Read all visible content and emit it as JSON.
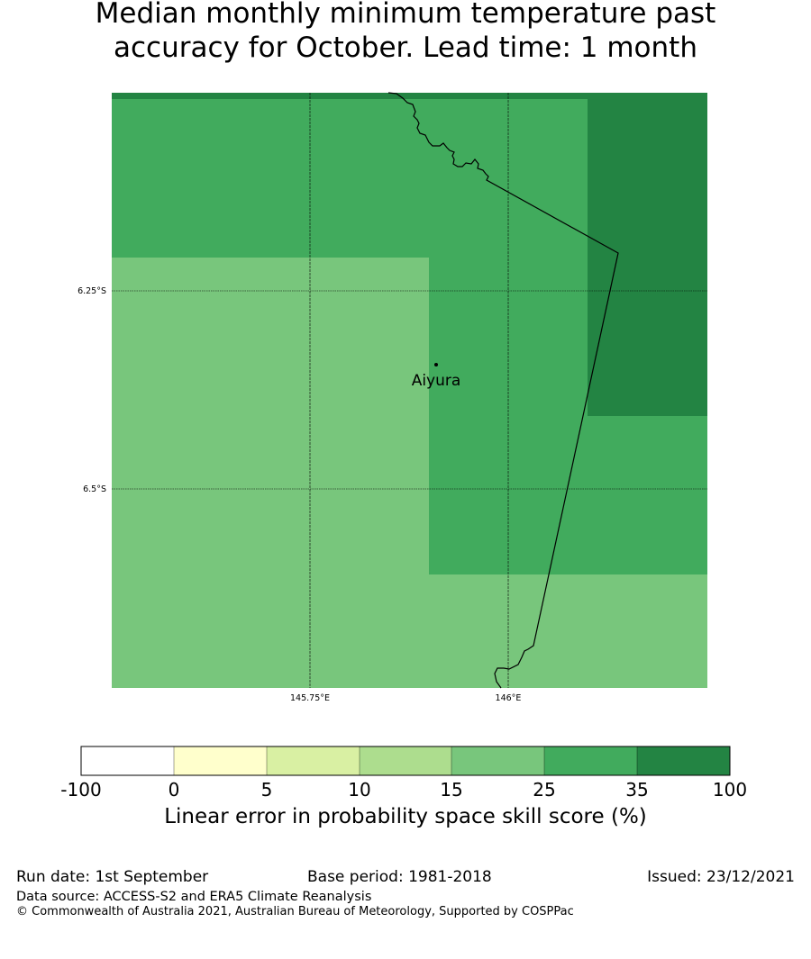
{
  "title_line1": "Median monthly minimum temperature past",
  "title_line2": "accuracy for October. Lead time: 1 month",
  "map": {
    "lat_labels": [
      "6.25°S",
      "6.5°S"
    ],
    "lon_labels": [
      "145.75°E",
      "146°E"
    ],
    "place": "Aiyura",
    "colors": {
      "15_25": "#78c67c",
      "25_35": "#41ab5d",
      "35_100": "#238443"
    }
  },
  "colorbar": {
    "ticks": [
      "-100",
      "0",
      "5",
      "10",
      "15",
      "25",
      "35",
      "100"
    ],
    "colors": [
      "#ffffff",
      "#ffffcc",
      "#d9f0a3",
      "#addd8e",
      "#78c67c",
      "#41ab5d",
      "#238443"
    ],
    "title": "Linear error in probability space skill score (%)"
  },
  "footer": {
    "run_date": "Run date: 1st September",
    "base_period": "Base period: 1981-2018",
    "issued": "Issued: 23/12/2021",
    "data_source": "Data source: ACCESS-S2 and ERA5 Climate Reanalysis",
    "copyright": "© Commonwealth of Australia 2021, Australian Bureau of Meteorology, Supported by COSPPac"
  }
}
